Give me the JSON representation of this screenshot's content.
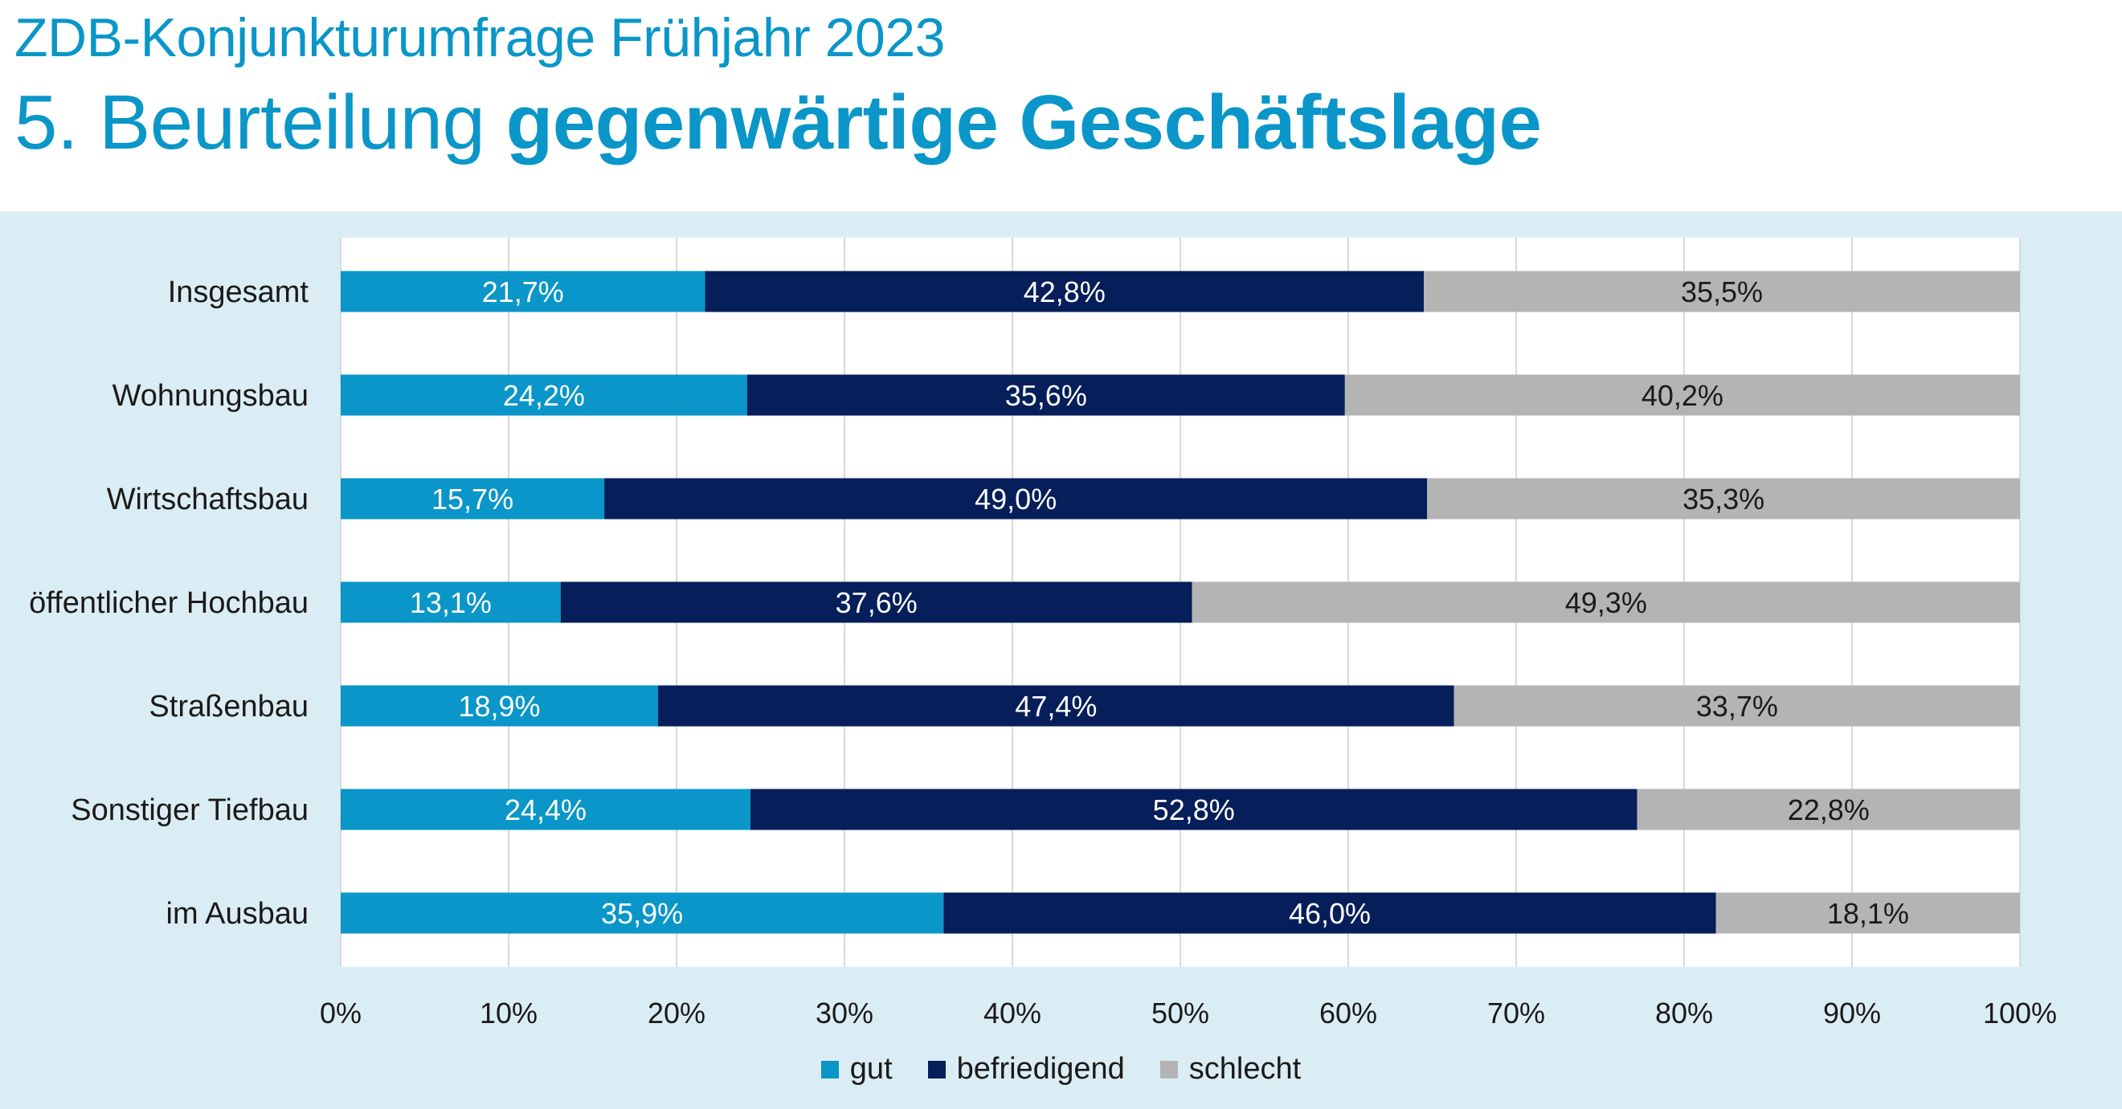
{
  "header": {
    "title_line1": "ZDB-Konjunkturumfrage Frühjahr 2023",
    "title_line2_regular": "5. Beurteilung ",
    "title_line2_bold": "gegenwärtige Geschäftslage"
  },
  "colors": {
    "gut": "#0a96c8",
    "befriedigend": "#061e5a",
    "schlecht": "#b4b4b4",
    "panel_background": "#dbedf4",
    "title": "#0a96c8"
  },
  "chart_data": {
    "type": "bar",
    "orientation": "horizontal",
    "stacked": true,
    "title": "",
    "xlabel": "",
    "ylabel": "",
    "xlim": [
      0,
      100
    ],
    "x_ticks": [
      "0%",
      "10%",
      "20%",
      "30%",
      "40%",
      "50%",
      "60%",
      "70%",
      "80%",
      "90%",
      "100%"
    ],
    "grid": "vertical",
    "legend_position": "bottom",
    "categories": [
      "Insgesamt",
      "Wohnungsbau",
      "Wirtschaftsbau",
      "öffentlicher Hochbau",
      "Straßenbau",
      "Sonstiger Tiefbau",
      "im Ausbau"
    ],
    "series": [
      {
        "name": "gut",
        "values": [
          21.7,
          24.2,
          15.7,
          13.1,
          18.9,
          24.4,
          35.9
        ],
        "labels": [
          "21,7%",
          "24,2%",
          "15,7%",
          "13,1%",
          "18,9%",
          "24,4%",
          "35,9%"
        ]
      },
      {
        "name": "befriedigend",
        "values": [
          42.8,
          35.6,
          49.0,
          37.6,
          47.4,
          52.8,
          46.0
        ],
        "labels": [
          "42,8%",
          "35,6%",
          "49,0%",
          "37,6%",
          "47,4%",
          "52,8%",
          "46,0%"
        ]
      },
      {
        "name": "schlecht",
        "values": [
          35.5,
          40.2,
          35.3,
          49.3,
          33.7,
          22.8,
          18.1
        ],
        "labels": [
          "35,5%",
          "40,2%",
          "35,3%",
          "49,3%",
          "33,7%",
          "22,8%",
          "18,1%"
        ]
      }
    ]
  }
}
